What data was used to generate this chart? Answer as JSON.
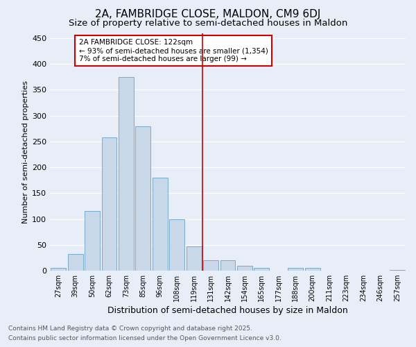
{
  "title": "2A, FAMBRIDGE CLOSE, MALDON, CM9 6DJ",
  "subtitle": "Size of property relative to semi-detached houses in Maldon",
  "xlabel": "Distribution of semi-detached houses by size in Maldon",
  "ylabel": "Number of semi-detached properties",
  "bin_labels": [
    "27sqm",
    "39sqm",
    "50sqm",
    "62sqm",
    "73sqm",
    "85sqm",
    "96sqm",
    "108sqm",
    "119sqm",
    "131sqm",
    "142sqm",
    "154sqm",
    "165sqm",
    "177sqm",
    "188sqm",
    "200sqm",
    "211sqm",
    "223sqm",
    "234sqm",
    "246sqm",
    "257sqm"
  ],
  "bar_heights": [
    5,
    32,
    115,
    258,
    375,
    280,
    180,
    100,
    47,
    20,
    20,
    10,
    5,
    0,
    6,
    6,
    0,
    0,
    0,
    0,
    2
  ],
  "bar_color": "#c8d8e8",
  "bar_edge_color": "#7aaac8",
  "background_color": "#e8eef8",
  "grid_color": "#ffffff",
  "vline_bin_index": 8,
  "vline_color": "#cc0000",
  "annotation_text": "2A FAMBRIDGE CLOSE: 122sqm\n← 93% of semi-detached houses are smaller (1,354)\n7% of semi-detached houses are larger (99) →",
  "annotation_box_color": "#cc0000",
  "ylim": [
    0,
    460
  ],
  "yticks": [
    0,
    50,
    100,
    150,
    200,
    250,
    300,
    350,
    400,
    450
  ],
  "footer_line1": "Contains HM Land Registry data © Crown copyright and database right 2025.",
  "footer_line2": "Contains public sector information licensed under the Open Government Licence v3.0.",
  "title_fontsize": 11,
  "subtitle_fontsize": 9.5,
  "xlabel_fontsize": 9,
  "ylabel_fontsize": 8,
  "tick_fontsize": 7,
  "annotation_fontsize": 7.5,
  "footer_fontsize": 6.5
}
